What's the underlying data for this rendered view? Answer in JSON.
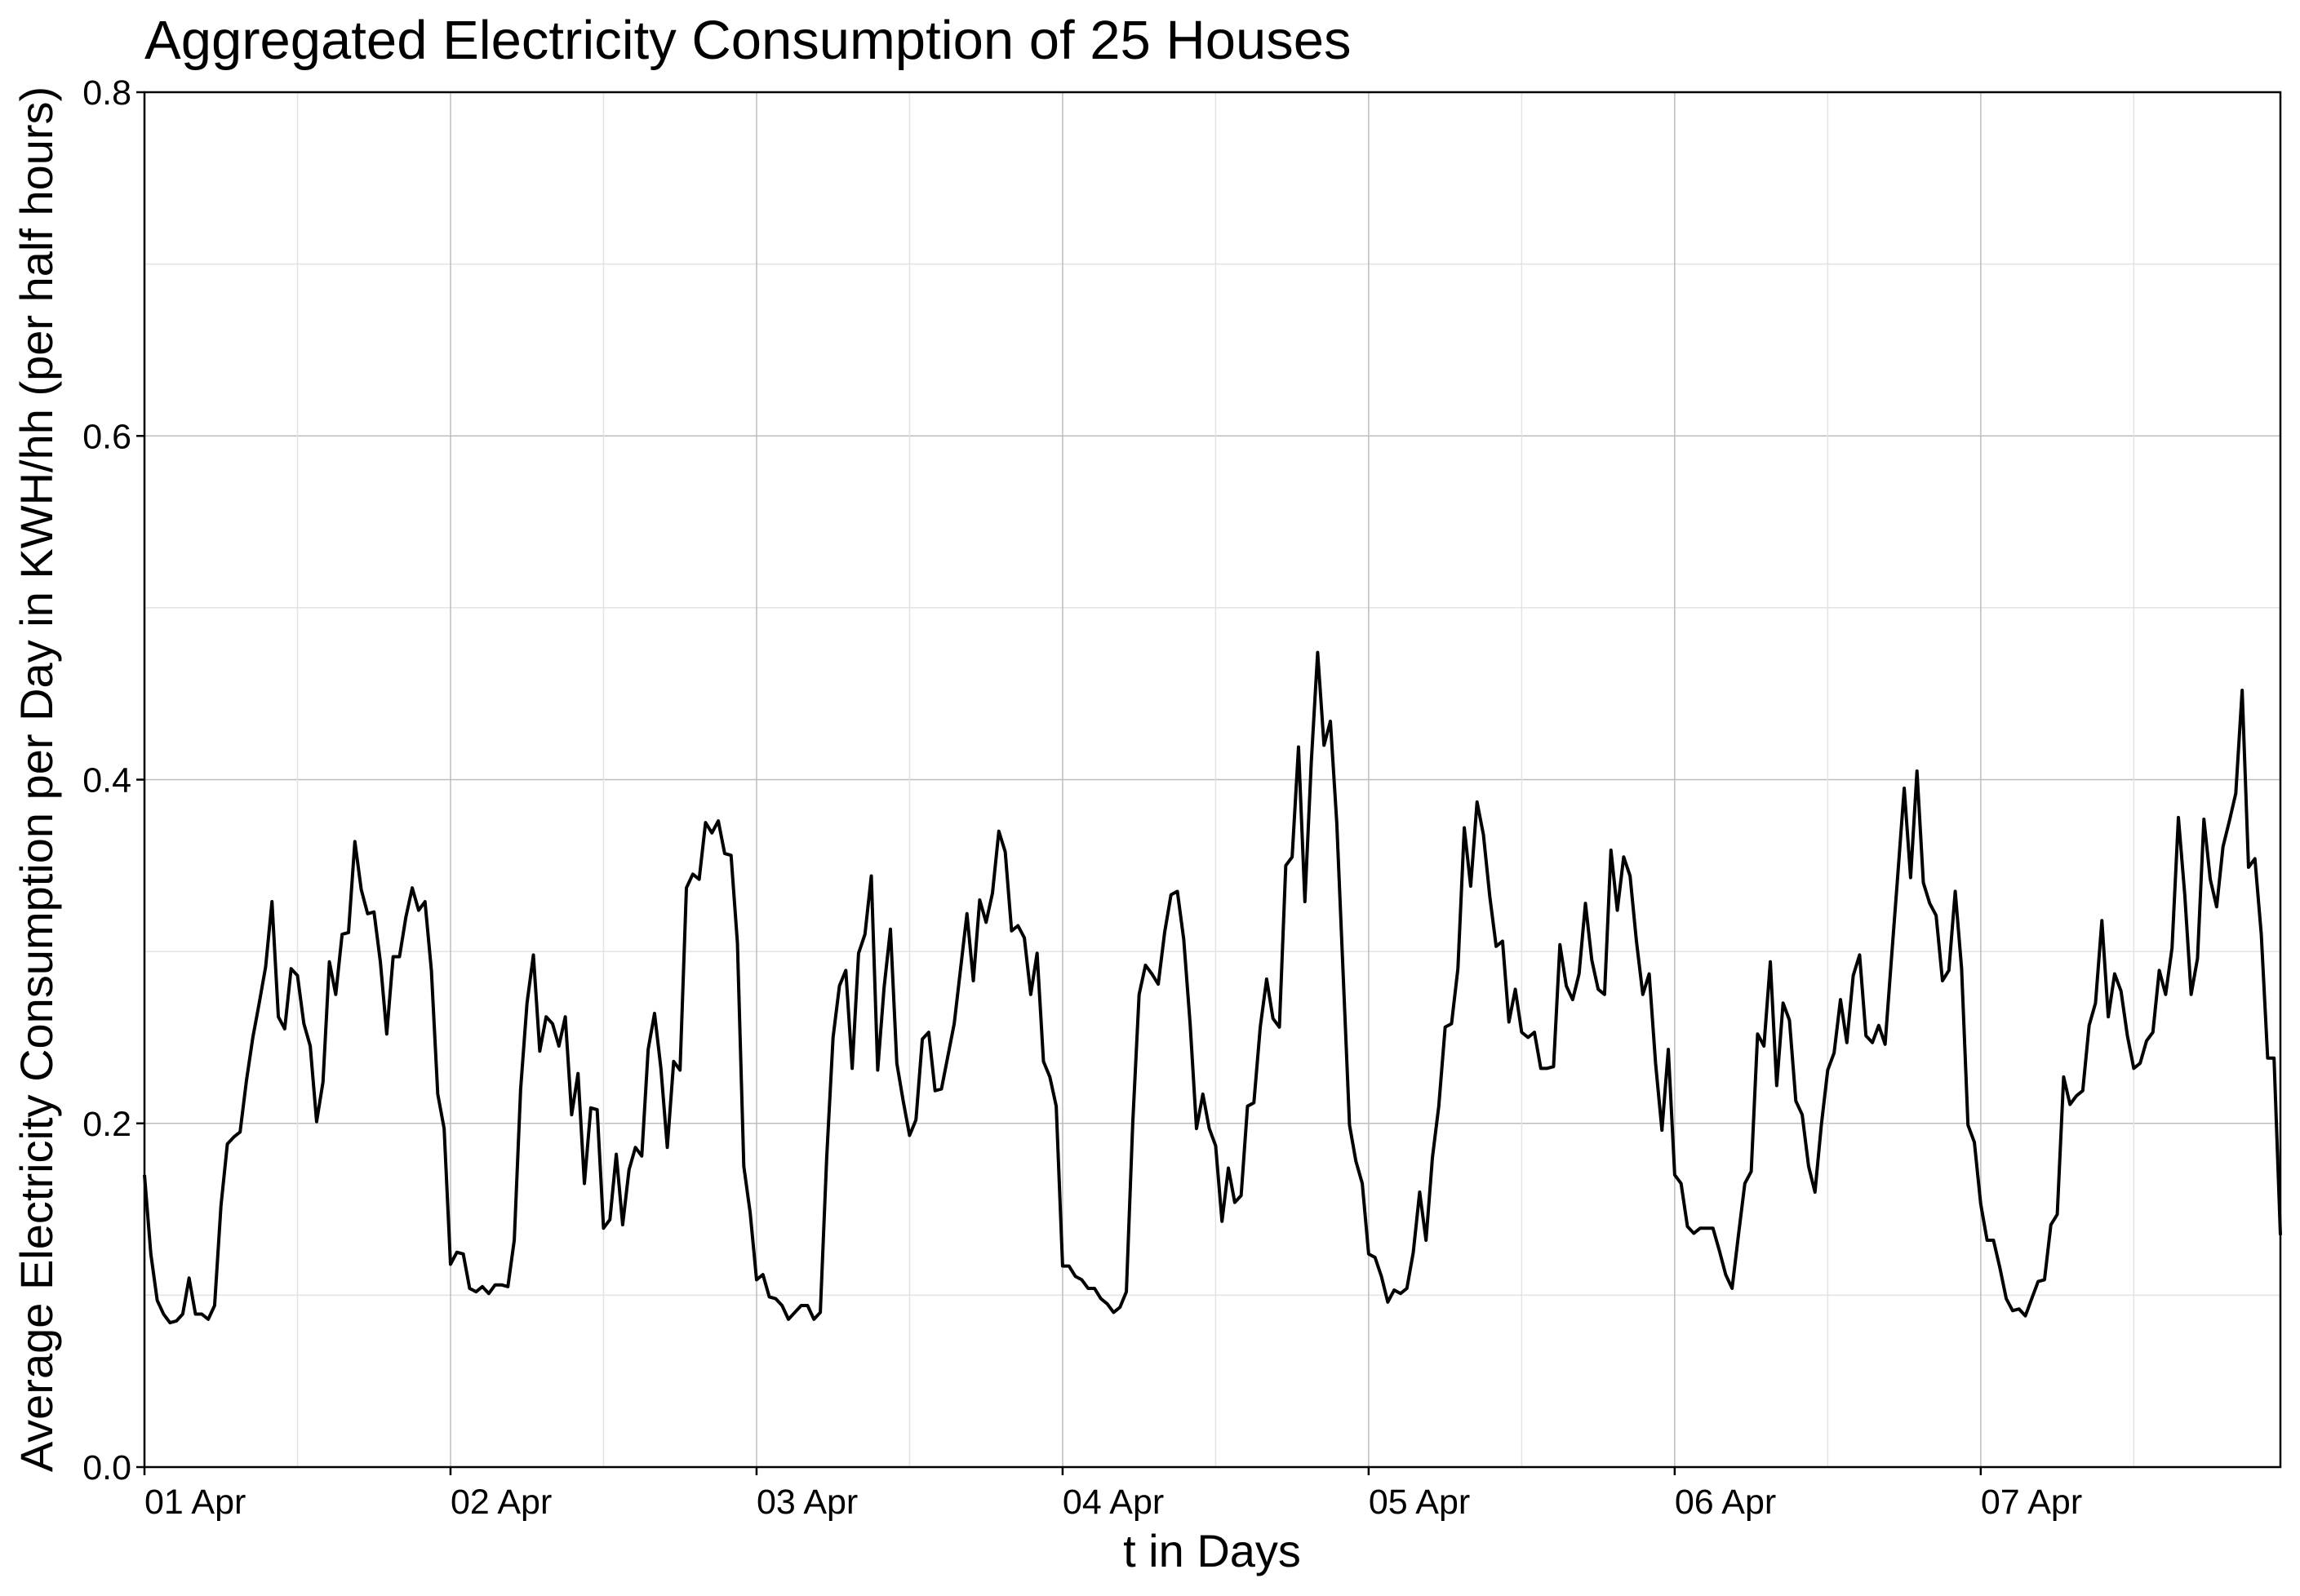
{
  "chart_data": {
    "type": "line",
    "title": "Aggregated Electricity Consumption of 25 Houses",
    "xlabel": "t in Days",
    "ylabel": "Average Electricity Consumption per Day in KWH/hh (per half hours)",
    "xlim": [
      "2013-04-01 00:00",
      "2013-04-07 23:30"
    ],
    "ylim": [
      0,
      0.8
    ],
    "yticks": [
      "0.0",
      "0.2",
      "0.4",
      "0.6",
      "0.8"
    ],
    "xticks": [
      "01 Apr",
      "02 Apr",
      "03 Apr",
      "04 Apr",
      "05 Apr",
      "06 Apr",
      "07 Apr"
    ],
    "grid": true,
    "colors": {
      "line": "#000000",
      "grid_major": "#bdbdbd",
      "grid_minor": "#e3e3e3"
    },
    "series": [
      {
        "x_start": "2013-04-01 00:00",
        "x_step": "30 min",
        "values": [
          0.17,
          0.124,
          0.097,
          0.089,
          0.084,
          0.085,
          0.089,
          0.11,
          0.089,
          0.089,
          0.086,
          0.094,
          0.152,
          0.188,
          0.192,
          0.195,
          0.225,
          0.25,
          0.27,
          0.291,
          0.329,
          0.262,
          0.255,
          0.29,
          0.286,
          0.258,
          0.245,
          0.201,
          0.224,
          0.294,
          0.275,
          0.31,
          0.311,
          0.364,
          0.336,
          0.322,
          0.323,
          0.294,
          0.252,
          0.297,
          0.297,
          0.32,
          0.337,
          0.324,
          0.329,
          0.289,
          0.217,
          0.197,
          0.118,
          0.125,
          0.124,
          0.104,
          0.102,
          0.105,
          0.101,
          0.106,
          0.106,
          0.105,
          0.132,
          0.22,
          0.27,
          0.298,
          0.242,
          0.262,
          0.258,
          0.245,
          0.262,
          0.205,
          0.229,
          0.165,
          0.209,
          0.208,
          0.139,
          0.144,
          0.182,
          0.141,
          0.173,
          0.186,
          0.181,
          0.243,
          0.264,
          0.232,
          0.186,
          0.236,
          0.231,
          0.337,
          0.345,
          0.342,
          0.375,
          0.369,
          0.376,
          0.357,
          0.356,
          0.305,
          0.175,
          0.148,
          0.109,
          0.112,
          0.099,
          0.098,
          0.094,
          0.086,
          0.09,
          0.094,
          0.094,
          0.086,
          0.09,
          0.18,
          0.25,
          0.28,
          0.289,
          0.232,
          0.299,
          0.31,
          0.344,
          0.231,
          0.279,
          0.313,
          0.235,
          0.213,
          0.193,
          0.202,
          0.249,
          0.253,
          0.219,
          0.22,
          0.239,
          0.258,
          0.29,
          0.322,
          0.283,
          0.33,
          0.317,
          0.334,
          0.37,
          0.358,
          0.312,
          0.315,
          0.308,
          0.275,
          0.299,
          0.236,
          0.227,
          0.21,
          0.117,
          0.117,
          0.111,
          0.109,
          0.104,
          0.104,
          0.098,
          0.095,
          0.09,
          0.093,
          0.102,
          0.2,
          0.275,
          0.292,
          0.287,
          0.281,
          0.311,
          0.333,
          0.335,
          0.307,
          0.258,
          0.197,
          0.217,
          0.197,
          0.187,
          0.143,
          0.174,
          0.154,
          0.158,
          0.21,
          0.212,
          0.256,
          0.284,
          0.261,
          0.256,
          0.35,
          0.355,
          0.419,
          0.329,
          0.41,
          0.474,
          0.42,
          0.434,
          0.375,
          0.287,
          0.199,
          0.178,
          0.165,
          0.124,
          0.122,
          0.111,
          0.096,
          0.103,
          0.101,
          0.104,
          0.125,
          0.16,
          0.132,
          0.18,
          0.21,
          0.256,
          0.258,
          0.29,
          0.372,
          0.338,
          0.387,
          0.368,
          0.332,
          0.303,
          0.306,
          0.259,
          0.278,
          0.253,
          0.25,
          0.253,
          0.232,
          0.232,
          0.233,
          0.304,
          0.28,
          0.272,
          0.287,
          0.328,
          0.295,
          0.278,
          0.275,
          0.359,
          0.324,
          0.355,
          0.344,
          0.306,
          0.275,
          0.287,
          0.235,
          0.196,
          0.243,
          0.17,
          0.165,
          0.14,
          0.136,
          0.139,
          0.139,
          0.139,
          0.126,
          0.112,
          0.104,
          0.135,
          0.165,
          0.172,
          0.252,
          0.245,
          0.294,
          0.222,
          0.27,
          0.26,
          0.213,
          0.205,
          0.175,
          0.16,
          0.199,
          0.231,
          0.241,
          0.272,
          0.247,
          0.286,
          0.298,
          0.251,
          0.247,
          0.257,
          0.246,
          0.296,
          0.345,
          0.395,
          0.343,
          0.405,
          0.34,
          0.328,
          0.321,
          0.283,
          0.289,
          0.335,
          0.29,
          0.199,
          0.189,
          0.153,
          0.132,
          0.132,
          0.116,
          0.098,
          0.091,
          0.092,
          0.088,
          0.098,
          0.108,
          0.109,
          0.141,
          0.147,
          0.227,
          0.211,
          0.216,
          0.219,
          0.257,
          0.27,
          0.318,
          0.262,
          0.287,
          0.277,
          0.251,
          0.232,
          0.235,
          0.248,
          0.253,
          0.289,
          0.275,
          0.302,
          0.378,
          0.333,
          0.275,
          0.296,
          0.377,
          0.342,
          0.326,
          0.361,
          0.376,
          0.392,
          0.452,
          0.349,
          0.354,
          0.31,
          0.238,
          0.238,
          0.135
        ]
      }
    ]
  }
}
